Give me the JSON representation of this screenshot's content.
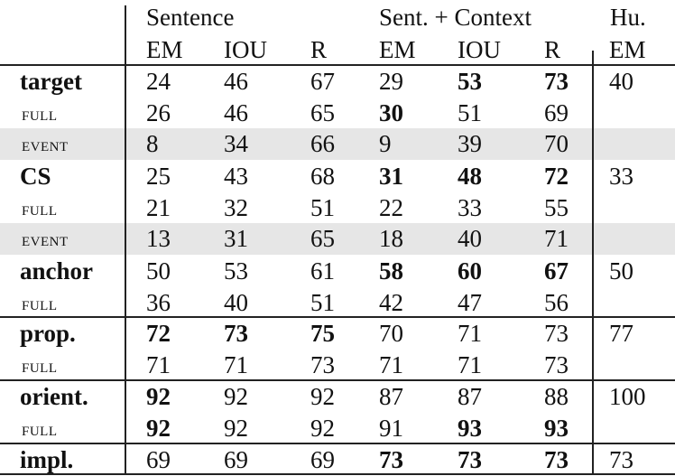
{
  "header": {
    "groups": [
      "Sentence",
      "Sent. + Context",
      "Hu."
    ],
    "columns": [
      "EM",
      "IOU",
      "R",
      "EM",
      "IOU",
      "R",
      "EM"
    ]
  },
  "rows": [
    {
      "label": "target",
      "type": "main",
      "shaded": false,
      "values": [
        "24",
        "46",
        "67",
        "29",
        "53",
        "73",
        "40"
      ],
      "bold": [
        false,
        false,
        false,
        false,
        true,
        true,
        false
      ]
    },
    {
      "label": "full",
      "type": "sub",
      "shaded": false,
      "values": [
        "26",
        "46",
        "65",
        "30",
        "51",
        "69",
        ""
      ],
      "bold": [
        false,
        false,
        false,
        true,
        false,
        false,
        false
      ]
    },
    {
      "label": "event",
      "type": "sub",
      "shaded": true,
      "values": [
        "8",
        "34",
        "66",
        "9",
        "39",
        "70",
        ""
      ],
      "bold": [
        false,
        false,
        false,
        false,
        false,
        false,
        false
      ]
    },
    {
      "label": "CS",
      "type": "main",
      "shaded": false,
      "values": [
        "25",
        "43",
        "68",
        "31",
        "48",
        "72",
        "33"
      ],
      "bold": [
        false,
        false,
        false,
        true,
        true,
        true,
        false
      ]
    },
    {
      "label": "full",
      "type": "sub",
      "shaded": false,
      "values": [
        "21",
        "32",
        "51",
        "22",
        "33",
        "55",
        ""
      ],
      "bold": [
        false,
        false,
        false,
        false,
        false,
        false,
        false
      ]
    },
    {
      "label": "event",
      "type": "sub",
      "shaded": true,
      "values": [
        "13",
        "31",
        "65",
        "18",
        "40",
        "71",
        ""
      ],
      "bold": [
        false,
        false,
        false,
        false,
        false,
        false,
        false
      ]
    },
    {
      "label": "anchor",
      "type": "main",
      "shaded": false,
      "values": [
        "50",
        "53",
        "61",
        "58",
        "60",
        "67",
        "50"
      ],
      "bold": [
        false,
        false,
        false,
        true,
        true,
        true,
        false
      ]
    },
    {
      "label": "full",
      "type": "sub",
      "shaded": false,
      "values": [
        "36",
        "40",
        "51",
        "42",
        "47",
        "56",
        ""
      ],
      "bold": [
        false,
        false,
        false,
        false,
        false,
        false,
        false
      ]
    },
    {
      "label": "prop.",
      "type": "main",
      "shaded": false,
      "values": [
        "72",
        "73",
        "75",
        "70",
        "71",
        "73",
        "77"
      ],
      "bold": [
        true,
        true,
        true,
        false,
        false,
        false,
        false
      ]
    },
    {
      "label": "full",
      "type": "sub",
      "shaded": false,
      "values": [
        "71",
        "71",
        "73",
        "71",
        "71",
        "73",
        ""
      ],
      "bold": [
        false,
        false,
        false,
        false,
        false,
        false,
        false
      ]
    },
    {
      "label": "orient.",
      "type": "main",
      "shaded": false,
      "values": [
        "92",
        "92",
        "92",
        "87",
        "87",
        "88",
        "100"
      ],
      "bold": [
        true,
        false,
        false,
        false,
        false,
        false,
        false
      ]
    },
    {
      "label": "full",
      "type": "sub",
      "shaded": false,
      "values": [
        "92",
        "92",
        "92",
        "91",
        "93",
        "93",
        ""
      ],
      "bold": [
        true,
        false,
        false,
        false,
        true,
        true,
        false
      ]
    },
    {
      "label": "impl.",
      "type": "main",
      "shaded": false,
      "values": [
        "69",
        "69",
        "69",
        "73",
        "73",
        "73",
        "73"
      ],
      "bold": [
        false,
        false,
        false,
        true,
        true,
        true,
        false
      ]
    }
  ]
}
